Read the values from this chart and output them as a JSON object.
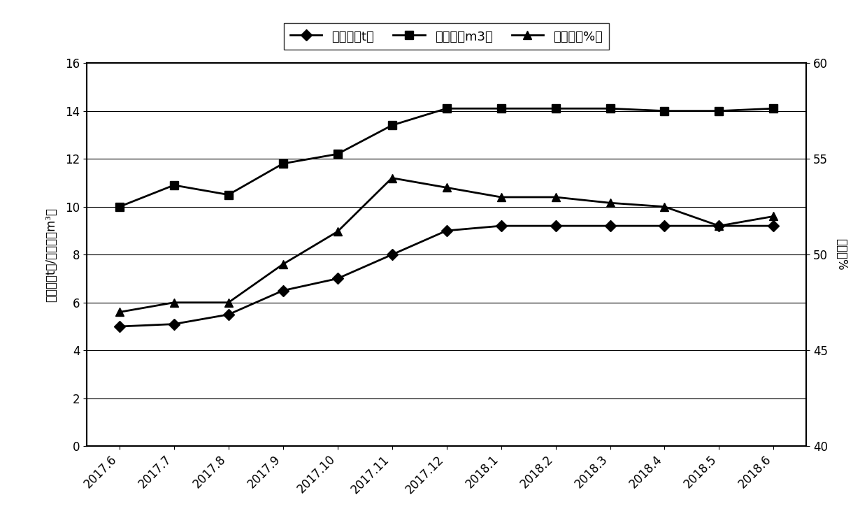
{
  "x_labels": [
    "2017.6",
    "2017.7",
    "2017.8",
    "2017.9",
    "2017.10",
    "2017.11",
    "2017.12",
    "2018.1",
    "2018.2",
    "2018.3",
    "2018.4",
    "2018.5",
    "2018.6"
  ],
  "daily_oil": [
    5.0,
    5.1,
    5.5,
    6.5,
    7.0,
    8.0,
    9.0,
    9.2,
    9.2,
    9.2,
    9.2,
    9.2,
    9.2
  ],
  "daily_liquid": [
    10.0,
    10.9,
    10.5,
    11.8,
    12.2,
    13.4,
    14.1,
    14.1,
    14.1,
    14.1,
    14.0,
    14.0,
    14.1
  ],
  "water_cut": [
    47.0,
    47.5,
    47.5,
    49.5,
    51.2,
    54.0,
    53.5,
    53.0,
    53.0,
    52.7,
    52.5,
    51.5,
    52.0
  ],
  "ylabel_left": "日产油（t）/日产液（m³）",
  "ylabel_right": "含水率%",
  "legend_oil": "日产油（t）",
  "legend_liquid": "日产液（m3）",
  "legend_water": "含水率（%）",
  "ylim_left": [
    0,
    16
  ],
  "ylim_right": [
    40,
    60
  ],
  "yticks_left": [
    0,
    2,
    4,
    6,
    8,
    10,
    12,
    14,
    16
  ],
  "yticks_right": [
    40,
    45,
    50,
    55,
    60
  ],
  "line_color": "#000000",
  "background_color": "#ffffff",
  "border_color": "#000000"
}
